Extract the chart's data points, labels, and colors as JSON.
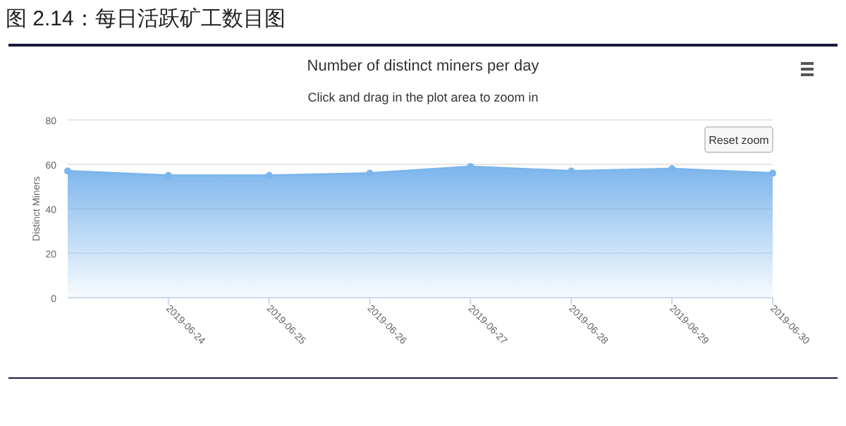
{
  "chart_data": {
    "type": "area",
    "title": "图 2.14：每日活跃矿工数目图",
    "subtitle": "Number of distinct miners per day",
    "annotations": [
      "Click and drag in the plot area to zoom in",
      "Reset zoom"
    ],
    "ylabel": "Distinct Miners",
    "x": [
      "2019-06-23",
      "2019-06-24",
      "2019-06-25",
      "2019-06-26",
      "2019-06-27",
      "2019-06-28",
      "2019-06-29",
      "2019-06-30"
    ],
    "series": [
      {
        "color": "#7cb5ec",
        "values": [
          57,
          55,
          55,
          56,
          59,
          57,
          58,
          56
        ]
      }
    ],
    "xlim": [
      "2019-06-23",
      "2019-06-30"
    ],
    "xticks": [
      "2019-06-24",
      "2019-06-25",
      "2019-06-26",
      "2019-06-27",
      "2019-06-28",
      "2019-06-29",
      "2019-06-30"
    ],
    "ylim": [
      0,
      80
    ],
    "yticks": [
      0,
      20,
      40,
      60,
      80
    ],
    "grid": "y",
    "marker": "circle"
  }
}
